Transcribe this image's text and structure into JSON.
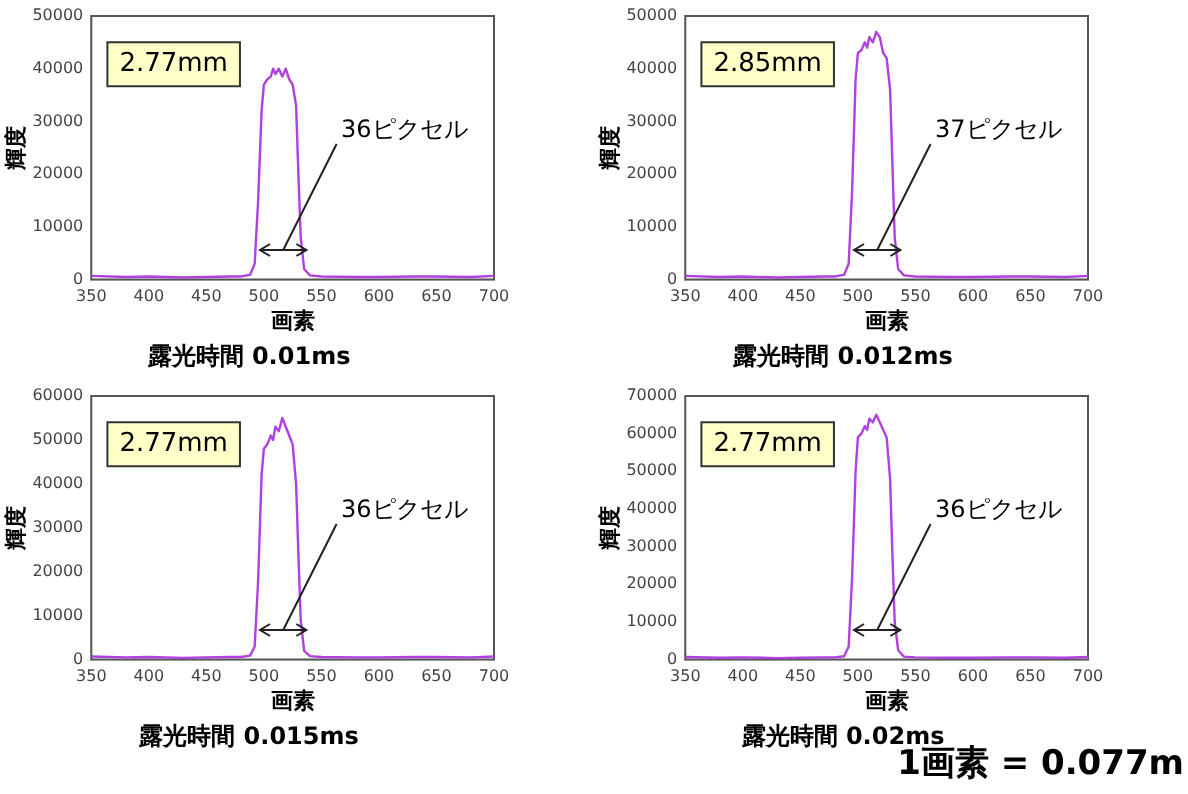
{
  "chart_data": [
    {
      "type": "line",
      "title": "露光時間 0.01ms",
      "xlabel": "画素",
      "ylabel": "輝度",
      "annotations": [
        "2.77mm",
        "36ピクセル"
      ],
      "xlim": [
        350,
        700
      ],
      "xticks": [
        350,
        400,
        450,
        500,
        550,
        600,
        650,
        700
      ],
      "ylim": [
        0,
        50000
      ],
      "yticks": [
        0,
        10000,
        20000,
        30000,
        40000,
        50000
      ],
      "grid": false,
      "legend": false,
      "marker": "none",
      "series": [
        {
          "color": "#b040e0",
          "x": [
            350,
            380,
            400,
            430,
            450,
            470,
            480,
            488,
            492,
            495,
            498,
            500,
            503,
            506,
            508,
            510,
            513,
            516,
            519,
            522,
            525,
            528,
            530,
            532,
            535,
            540,
            550,
            580,
            600,
            630,
            650,
            680,
            700
          ],
          "values": [
            700,
            500,
            600,
            400,
            500,
            600,
            600,
            900,
            3000,
            15000,
            32000,
            37000,
            38000,
            38500,
            40000,
            39000,
            40000,
            38500,
            40000,
            38000,
            37000,
            33000,
            20000,
            8000,
            2000,
            800,
            600,
            500,
            500,
            600,
            600,
            500,
            700
          ]
        }
      ]
    },
    {
      "type": "line",
      "title": "露光時間 0.012ms",
      "xlabel": "画素",
      "ylabel": "輝度",
      "annotations": [
        "2.85mm",
        "37ピクセル"
      ],
      "xlim": [
        350,
        700
      ],
      "xticks": [
        350,
        400,
        450,
        500,
        550,
        600,
        650,
        700
      ],
      "ylim": [
        0,
        50000
      ],
      "yticks": [
        0,
        10000,
        20000,
        30000,
        40000,
        50000
      ],
      "grid": false,
      "legend": false,
      "marker": "none",
      "series": [
        {
          "color": "#b040e0",
          "x": [
            350,
            380,
            400,
            430,
            450,
            470,
            480,
            488,
            492,
            495,
            498,
            500,
            503,
            506,
            508,
            510,
            513,
            516,
            519,
            522,
            525,
            528,
            530,
            532,
            535,
            540,
            550,
            580,
            600,
            630,
            650,
            680,
            700
          ],
          "values": [
            700,
            500,
            600,
            400,
            500,
            600,
            600,
            900,
            3000,
            17000,
            38000,
            43000,
            43500,
            45000,
            44000,
            46000,
            45000,
            47000,
            46000,
            43000,
            42000,
            36000,
            22000,
            8000,
            2000,
            800,
            600,
            500,
            500,
            600,
            600,
            500,
            700
          ]
        }
      ]
    },
    {
      "type": "line",
      "title": "露光時間 0.015ms",
      "xlabel": "画素",
      "ylabel": "輝度",
      "annotations": [
        "2.77mm",
        "36ピクセル"
      ],
      "xlim": [
        350,
        700
      ],
      "xticks": [
        350,
        400,
        450,
        500,
        550,
        600,
        650,
        700
      ],
      "ylim": [
        0,
        60000
      ],
      "yticks": [
        0,
        10000,
        20000,
        30000,
        40000,
        50000,
        60000
      ],
      "grid": false,
      "legend": false,
      "marker": "none",
      "series": [
        {
          "color": "#b040e0",
          "x": [
            350,
            380,
            400,
            430,
            450,
            470,
            480,
            488,
            492,
            495,
            498,
            500,
            503,
            506,
            508,
            510,
            513,
            516,
            519,
            522,
            525,
            528,
            530,
            532,
            535,
            540,
            550,
            580,
            600,
            630,
            650,
            680,
            700
          ],
          "values": [
            700,
            500,
            600,
            400,
            500,
            600,
            600,
            900,
            3000,
            18000,
            42000,
            48000,
            49000,
            51000,
            50000,
            53000,
            52000,
            55000,
            53000,
            51000,
            49000,
            40000,
            24000,
            9000,
            2000,
            800,
            600,
            500,
            500,
            600,
            600,
            500,
            700
          ]
        }
      ]
    },
    {
      "type": "line",
      "title": "露光時間 0.02ms",
      "xlabel": "画素",
      "ylabel": "輝度",
      "annotations": [
        "2.77mm",
        "36ピクセル",
        "1画素 = 0.077m"
      ],
      "xlim": [
        350,
        700
      ],
      "xticks": [
        350,
        400,
        450,
        500,
        550,
        600,
        650,
        700
      ],
      "ylim": [
        0,
        70000
      ],
      "yticks": [
        0,
        10000,
        20000,
        30000,
        40000,
        50000,
        60000,
        70000
      ],
      "grid": false,
      "legend": false,
      "marker": "none",
      "series": [
        {
          "color": "#b040e0",
          "x": [
            350,
            380,
            400,
            430,
            450,
            470,
            480,
            488,
            492,
            495,
            498,
            500,
            503,
            506,
            508,
            510,
            513,
            516,
            519,
            522,
            525,
            528,
            530,
            532,
            535,
            540,
            550,
            580,
            600,
            630,
            650,
            680,
            700
          ],
          "values": [
            700,
            500,
            600,
            400,
            500,
            600,
            600,
            900,
            3500,
            22000,
            50000,
            59000,
            60000,
            62000,
            61000,
            64000,
            63000,
            65000,
            63000,
            61000,
            59000,
            48000,
            28000,
            10000,
            2500,
            800,
            600,
            500,
            500,
            600,
            600,
            500,
            700
          ]
        }
      ]
    }
  ]
}
